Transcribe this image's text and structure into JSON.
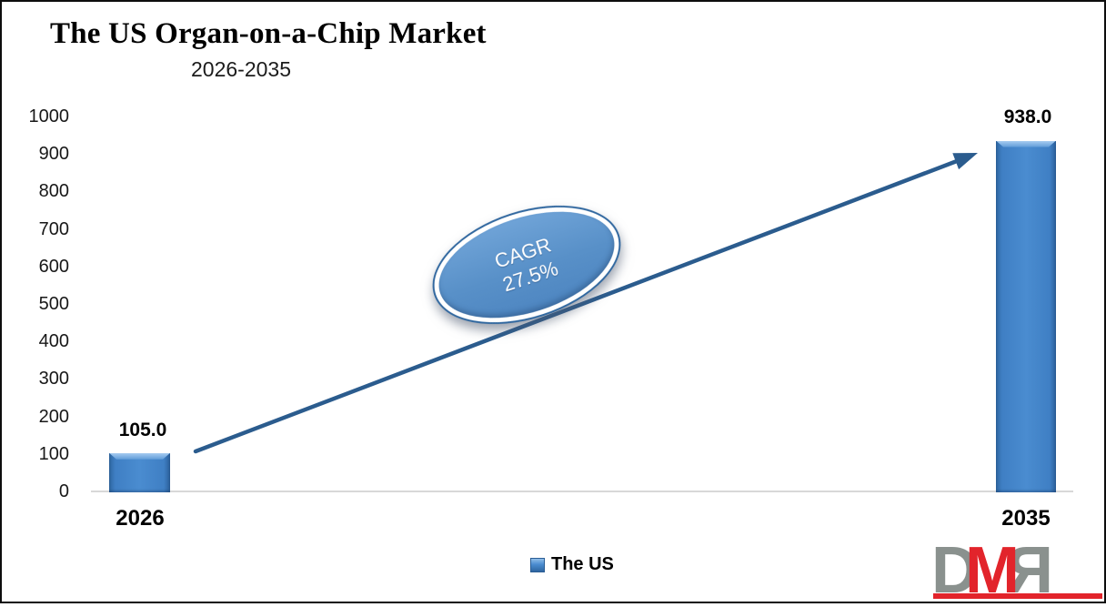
{
  "chart_data": {
    "type": "bar",
    "title": "The US Organ-on-a-Chip Market",
    "subtitle": "2026-2035",
    "categories": [
      "2026",
      "2035"
    ],
    "series": [
      {
        "name": "The US",
        "values": [
          105.0,
          938.0
        ]
      }
    ],
    "data_labels": [
      "105.0",
      "938.0"
    ],
    "xlabel": "",
    "ylabel": "",
    "ylim": [
      0,
      1000
    ],
    "ytick_step": 100,
    "yticks": [
      "1000",
      "900",
      "800",
      "700",
      "600",
      "500",
      "400",
      "300",
      "200",
      "100",
      "0"
    ],
    "grid": false,
    "legend_position": "bottom-center",
    "annotation": {
      "line1": "CAGR",
      "line2": "27.5%"
    },
    "colors": {
      "bar_fill": "#4a8cd0",
      "bar_edge": "#2e66a0",
      "bar_bevel": "#8fbde8",
      "arrow": "#2b5c8e",
      "ellipse_fill": "#5890c8",
      "ellipse_rim": "#ffffff",
      "ellipse_ring": "#30679f",
      "axis_line": "#d8d8d8",
      "text": "#000000"
    }
  },
  "legend": {
    "label": "The US"
  },
  "watermark": {
    "letters": [
      "D",
      "M",
      "R"
    ],
    "colors": {
      "gray": "#8a918e",
      "red": "#e2242b"
    }
  }
}
